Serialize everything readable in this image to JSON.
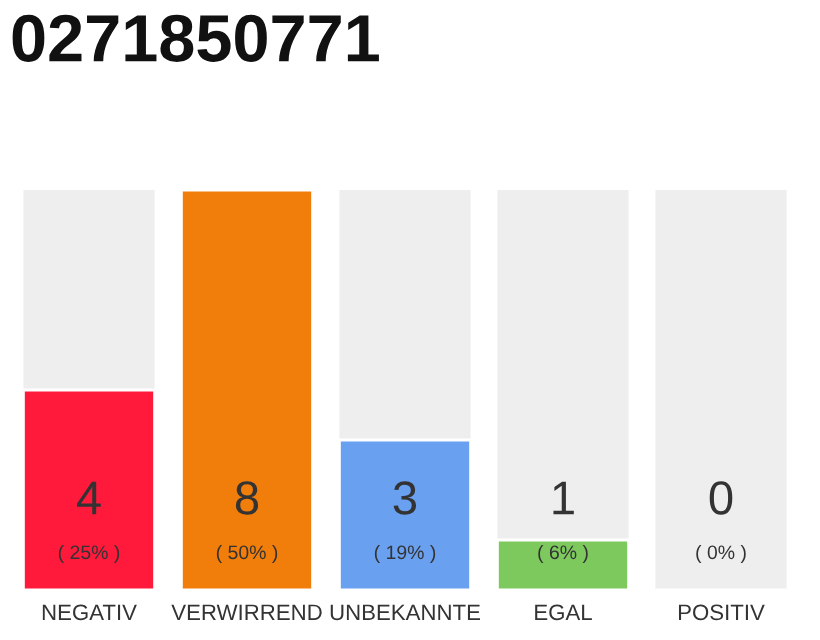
{
  "chart_data": {
    "type": "bar",
    "title": "0271850771",
    "categories": [
      "NEGATIV",
      "VERWIRREND",
      "UNBEKANNTE",
      "EGAL",
      "POSITIV"
    ],
    "values": [
      4,
      8,
      3,
      1,
      0
    ],
    "colors": [
      "#ff1a3c",
      "#f17d0b",
      "#6aa0f0",
      "#7dc95e",
      null
    ],
    "value_labels": [
      "4",
      "8",
      "3",
      "1",
      "0"
    ],
    "annotations": [
      "( 25% )",
      "( 50% )",
      "( 19% )",
      "( 6% )",
      "( 0% )"
    ],
    "grid": false
  }
}
